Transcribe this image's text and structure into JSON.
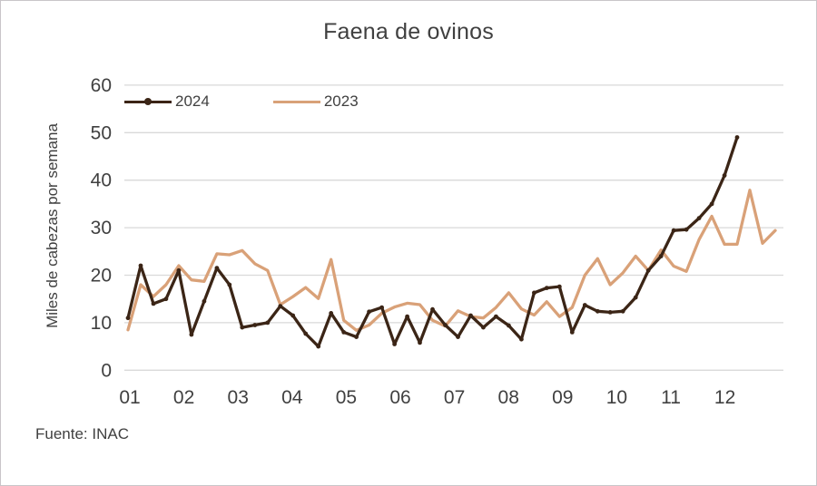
{
  "page": {
    "background": "#ffffff",
    "border_color": "#c9c5c9",
    "text_color": "#404040",
    "gridline_color": "#d9d9d9"
  },
  "chart_data": {
    "type": "line",
    "title": "Faena de ovinos",
    "ylabel": "Miles de cabezas por semana",
    "xlabel": "",
    "source": "Fuente: INAC",
    "x_unit": "semana (agrupadas por mes)",
    "x_ticks": [
      "01",
      "02",
      "03",
      "04",
      "05",
      "06",
      "07",
      "08",
      "09",
      "10",
      "11",
      "12"
    ],
    "y_ticks": [
      0,
      10,
      20,
      30,
      40,
      50,
      60
    ],
    "ylim": [
      0,
      60
    ],
    "grid": "horizontal",
    "legend_position": "top-left-inside",
    "series": [
      {
        "name": "2024",
        "color": "#3B2516",
        "marker": true,
        "values": [
          11,
          22,
          14,
          15,
          21,
          7.5,
          14.5,
          21.5,
          18,
          9,
          9.5,
          10,
          13.5,
          11.5,
          7.7,
          5,
          12,
          8,
          7,
          12.3,
          13.2,
          5.5,
          11.3,
          5.8,
          12.8,
          9.5,
          7,
          11.5,
          9,
          11.3,
          9.4,
          6.5,
          16.3,
          17.3,
          17.6,
          8,
          13.7,
          12.4,
          12.2,
          12.4,
          15.3,
          21,
          24,
          29.4,
          29.6,
          32,
          35,
          41,
          49
        ]
      },
      {
        "name": "2023",
        "color": "#D9A178",
        "marker": false,
        "values": [
          8.5,
          18,
          15.5,
          18,
          22,
          19,
          18.7,
          24.5,
          24.3,
          25.2,
          22.4,
          21,
          13.8,
          15.5,
          17.4,
          15.1,
          23.3,
          10.5,
          8.4,
          9.5,
          12,
          13.3,
          14.1,
          13.8,
          10.5,
          9.3,
          12.5,
          11.3,
          11,
          13.2,
          16.3,
          12.9,
          11.6,
          14.4,
          11.3,
          13.2,
          20,
          23.5,
          18,
          20.5,
          24,
          21,
          25.3,
          21.9,
          20.8,
          27.5,
          32.4,
          26.5,
          26.5,
          37.9,
          26.7,
          29.4
        ]
      }
    ]
  }
}
